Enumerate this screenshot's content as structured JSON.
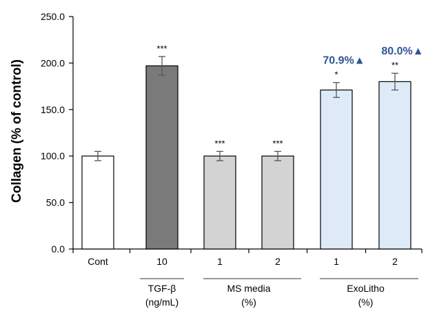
{
  "chart_data": {
    "type": "bar",
    "ylabel": "Collagen (% of control)",
    "ylim": [
      0,
      250
    ],
    "yticks": [
      "0.0",
      "50.0",
      "100.0",
      "150.0",
      "200.0",
      "250.0"
    ],
    "categories": [
      "Cont",
      "10",
      "1",
      "2",
      "1",
      "2"
    ],
    "values": [
      100,
      197,
      100,
      100,
      171,
      180
    ],
    "errors": [
      5,
      10,
      5,
      5,
      8,
      9
    ],
    "significance": [
      "",
      "***",
      "***",
      "***",
      "*",
      "**"
    ],
    "bar_colors": [
      "#ffffff",
      "#7a7a7a",
      "#d3d3d3",
      "#d3d3d3",
      "#deeaf7",
      "#deeaf7"
    ],
    "increase_labels": [
      {
        "bar": 4,
        "text": "70.9%",
        "marker": "▲"
      },
      {
        "bar": 5,
        "text": "80.0%",
        "marker": "▲"
      }
    ],
    "groups": [
      {
        "line1": "TGF-β",
        "line2": "(ng/mL)",
        "bars": [
          1,
          1
        ]
      },
      {
        "line1": "MS media",
        "line2": "(%)",
        "bars": [
          2,
          3
        ]
      },
      {
        "line1": "ExoLitho",
        "line2": "(%)",
        "bars": [
          4,
          5
        ]
      }
    ],
    "accent_color": "#2e5597",
    "grid": false,
    "legend": "none"
  }
}
